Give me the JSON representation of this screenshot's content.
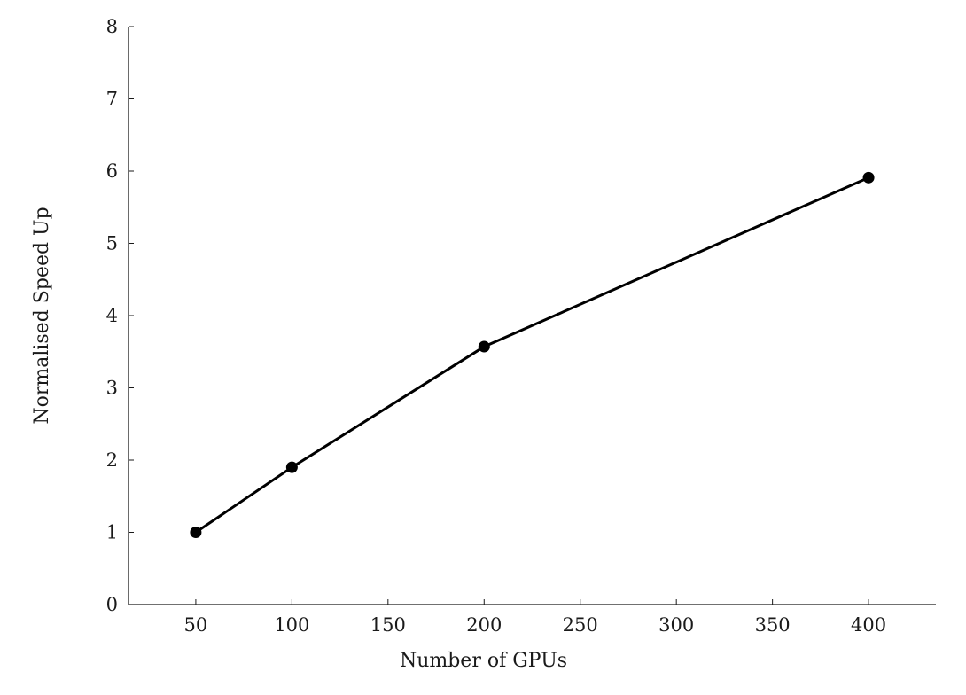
{
  "chart_data": {
    "type": "line",
    "title": "",
    "xlabel": "Number of GPUs",
    "ylabel": "Normalised Speed Up",
    "xlim": [
      15,
      435
    ],
    "ylim": [
      0,
      8
    ],
    "xticks": [
      50,
      100,
      150,
      200,
      250,
      300,
      350,
      400
    ],
    "yticks": [
      0,
      1,
      2,
      3,
      4,
      5,
      6,
      7,
      8
    ],
    "grid": false,
    "legend": "none",
    "series": [
      {
        "color": "#000000",
        "marker": "circle",
        "x": [
          50,
          100,
          200,
          400
        ],
        "y": [
          1.0,
          1.9,
          3.57,
          5.91
        ]
      }
    ]
  }
}
